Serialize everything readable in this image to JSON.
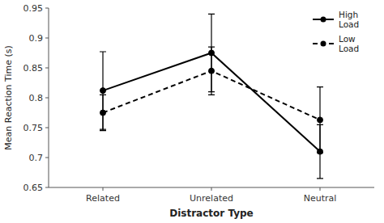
{
  "chart_data": {
    "type": "line",
    "xlabel": "Distractor Type",
    "ylabel": "Mean Reaction Time (s)",
    "categories": [
      "Related",
      "Unrelated",
      "Neutral"
    ],
    "series": [
      {
        "name": "High\nLoad",
        "color": "#000000",
        "line_style": "solid",
        "marker": "circle",
        "values": [
          0.812,
          0.875,
          0.71
        ],
        "errors": [
          0.065,
          0.065,
          0.045
        ]
      },
      {
        "name": "Low\nLoad",
        "color": "#000000",
        "line_style": "dashed",
        "marker": "circle",
        "values": [
          0.775,
          0.845,
          0.763
        ],
        "errors": [
          0.03,
          0.04,
          0.055
        ]
      }
    ],
    "ylim": [
      0.65,
      0.95
    ],
    "yticks": [
      0.65,
      0.7,
      0.75,
      0.8,
      0.85,
      0.9,
      0.95
    ],
    "grid": false,
    "legend": "upper right"
  }
}
